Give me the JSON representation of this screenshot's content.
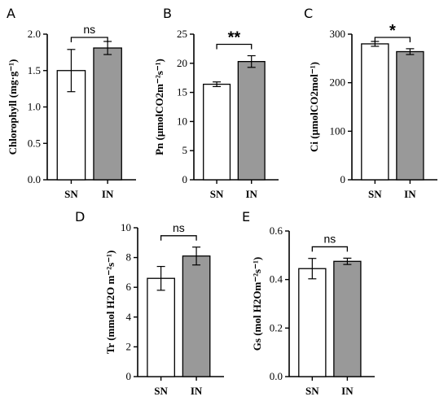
{
  "colors": {
    "sn_fill": "#ffffff",
    "in_fill": "#999999",
    "stroke": "#000000"
  },
  "chart_data": [
    {
      "panel": "A",
      "type": "bar",
      "ylabel": "Chlorophyll (mg·g⁻¹)",
      "ylim": [
        0,
        2.0
      ],
      "yticks": [
        "0.0",
        "0.5",
        "1.0",
        "1.5",
        "2.0"
      ],
      "categories": [
        "SN",
        "IN"
      ],
      "values": [
        1.5,
        1.81
      ],
      "errors": [
        0.29,
        0.09
      ],
      "significance": "ns"
    },
    {
      "panel": "B",
      "type": "bar",
      "ylabel": "Pn (μmolCO2m⁻²s⁻¹)",
      "ylim": [
        0,
        25
      ],
      "yticks": [
        "0",
        "5",
        "10",
        "15",
        "20",
        "25"
      ],
      "categories": [
        "SN",
        "IN"
      ],
      "values": [
        16.4,
        20.3
      ],
      "errors": [
        0.4,
        1.0
      ],
      "significance": "**"
    },
    {
      "panel": "C",
      "type": "bar",
      "ylabel": "Ci (μmolCO2mol⁻¹)",
      "ylim": [
        0,
        300
      ],
      "yticks": [
        "0",
        "100",
        "200",
        "300"
      ],
      "categories": [
        "SN",
        "IN"
      ],
      "values": [
        280,
        264
      ],
      "errors": [
        5,
        6
      ],
      "significance": "*"
    },
    {
      "panel": "D",
      "type": "bar",
      "ylabel": "Tr (mmol H2O m⁻²s⁻¹)",
      "ylim": [
        0,
        10
      ],
      "yticks": [
        "0",
        "2",
        "4",
        "6",
        "8",
        "10"
      ],
      "categories": [
        "SN",
        "IN"
      ],
      "values": [
        6.6,
        8.1
      ],
      "errors": [
        0.8,
        0.6
      ],
      "significance": "ns"
    },
    {
      "panel": "E",
      "type": "bar",
      "ylabel": "Gs (mol H2Om⁻²s⁻¹)",
      "ylim": [
        0,
        0.6
      ],
      "yticks": [
        "0.0",
        "0.2",
        "0.4",
        "0.6"
      ],
      "categories": [
        "SN",
        "IN"
      ],
      "values": [
        0.445,
        0.475
      ],
      "errors": [
        0.042,
        0.013
      ],
      "significance": "ns"
    }
  ]
}
